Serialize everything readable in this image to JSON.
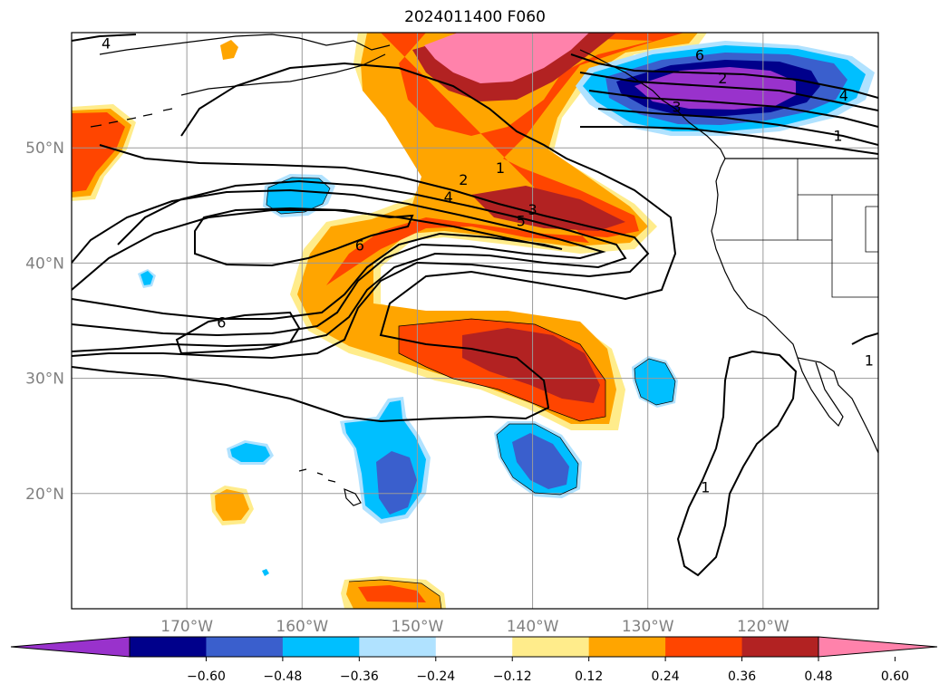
{
  "title": "2024011400 F060",
  "map": {
    "lon_range": [
      -180,
      -110
    ],
    "lat_range": [
      10,
      60
    ],
    "lon_ticks": [
      {
        "value": -170,
        "label": "170°W"
      },
      {
        "value": -160,
        "label": "160°W"
      },
      {
        "value": -150,
        "label": "150°W"
      },
      {
        "value": -140,
        "label": "140°W"
      },
      {
        "value": -130,
        "label": "130°W"
      },
      {
        "value": -120,
        "label": "120°W"
      }
    ],
    "lat_ticks": [
      {
        "value": 20,
        "label": "20°N"
      },
      {
        "value": 30,
        "label": "30°N"
      },
      {
        "value": 40,
        "label": "40°N"
      },
      {
        "value": 50,
        "label": "50°N"
      }
    ],
    "grid": true,
    "tick_label_color": "#808080"
  },
  "colorbar": {
    "orientation": "horizontal",
    "extend": "both",
    "colors": [
      "#9932cc",
      "#00008b",
      "#3a5fcd",
      "#00bfff",
      "#b0e2ff",
      "#ffffff",
      "#ffec8b",
      "#ffa500",
      "#ff4500",
      "#b22222",
      "#ff82ab"
    ],
    "ticks": [
      "−0.60",
      "−0.48",
      "−0.36",
      "−0.24",
      "−0.12",
      "0.12",
      "0.24",
      "0.36",
      "0.48",
      "0.60"
    ]
  },
  "contours": {
    "color": "#000000",
    "labels": [
      {
        "text": "1",
        "lon": -142.8,
        "lat": 48.2
      },
      {
        "text": "2",
        "lon": -146.0,
        "lat": 47.2
      },
      {
        "text": "3",
        "lon": -140.0,
        "lat": 44.6
      },
      {
        "text": "4",
        "lon": -147.3,
        "lat": 45.7
      },
      {
        "text": "5",
        "lon": -141.0,
        "lat": 43.6
      },
      {
        "text": "6",
        "lon": -155.0,
        "lat": 41.5
      },
      {
        "text": "6",
        "lon": -167.0,
        "lat": 34.8
      },
      {
        "text": "4",
        "lon": -113.0,
        "lat": 54.5
      },
      {
        "text": "1",
        "lon": -113.5,
        "lat": 51.0
      },
      {
        "text": "1",
        "lon": -125.0,
        "lat": 20.5
      },
      {
        "text": "1",
        "lon": -110.8,
        "lat": 31.5
      },
      {
        "text": "4",
        "lon": -177.0,
        "lat": 59.0
      },
      {
        "text": "6",
        "lon": -125.5,
        "lat": 58.0
      },
      {
        "text": "2",
        "lon": -123.5,
        "lat": 56.0
      },
      {
        "text": "3",
        "lon": -127.5,
        "lat": 53.5
      }
    ]
  }
}
